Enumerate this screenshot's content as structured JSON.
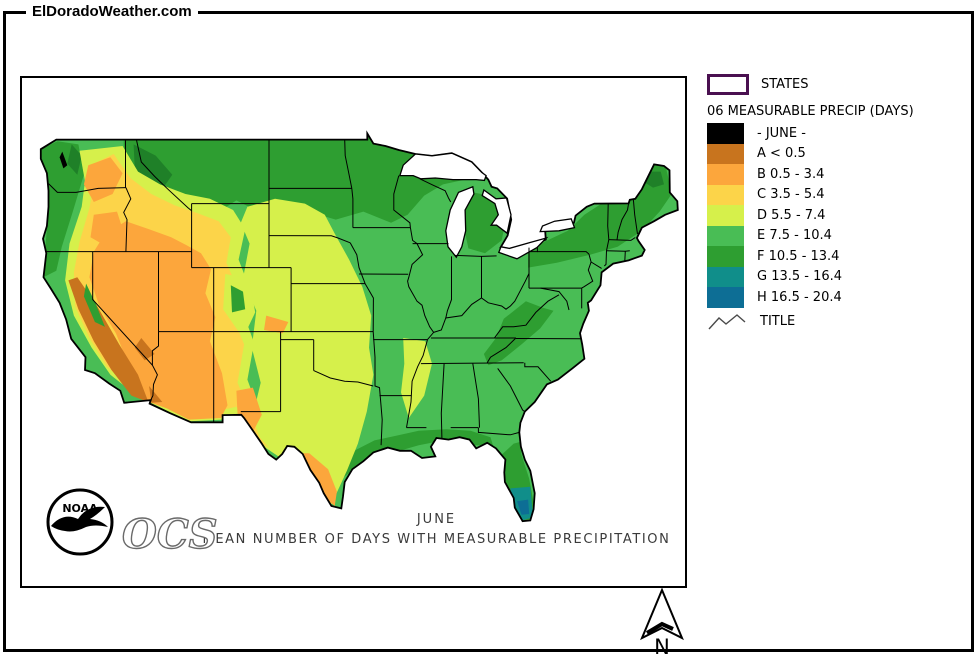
{
  "page": {
    "site_label": "ElDoradoWeather.com"
  },
  "legend": {
    "states_label": "STATES",
    "states_outline_color": "#4a1050",
    "layer_title": "06 MEASURABLE PRECIP (DAYS)",
    "classes": [
      {
        "key": "JUNE",
        "label": "- JUNE -",
        "color": "#000000"
      },
      {
        "key": "A",
        "label": "A < 0.5",
        "color": "#c8741e"
      },
      {
        "key": "B",
        "label": "B 0.5 - 3.4",
        "color": "#fca63c"
      },
      {
        "key": "C",
        "label": "C 3.5 - 5.4",
        "color": "#fcd449"
      },
      {
        "key": "D",
        "label": "D 5.5 - 7.4",
        "color": "#d6f04b"
      },
      {
        "key": "E",
        "label": "E 7.5 - 10.4",
        "color": "#49bd55"
      },
      {
        "key": "F",
        "label": "F 10.5 - 13.4",
        "color": "#2e9e31"
      },
      {
        "key": "G",
        "label": "G 13.5 - 16.4",
        "color": "#108e8a"
      },
      {
        "key": "H",
        "label": "H 16.5 - 20.4",
        "color": "#0d6e95"
      }
    ],
    "title_item_label": "TITLE"
  },
  "map": {
    "caption_line1": "JUNE",
    "caption_line2": "MEAN NUMBER OF DAYS WITH MEASURABLE PRECIPITATION",
    "noaa_label": "NOAA",
    "ocs_label": "OCS"
  },
  "compass": {
    "north_label": "N"
  }
}
